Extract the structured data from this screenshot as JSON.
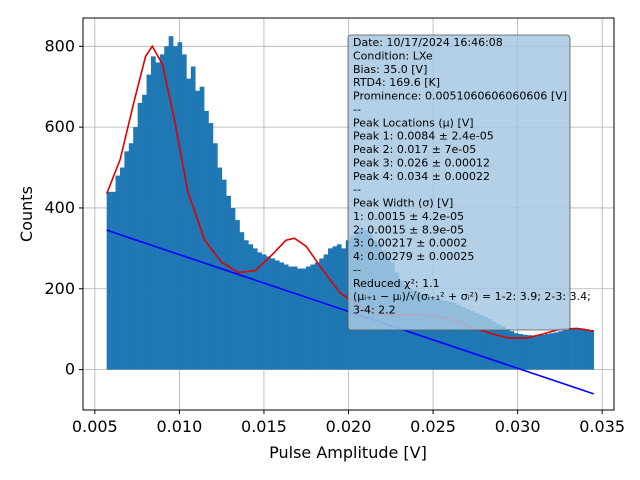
{
  "chart_data": {
    "type": "bar",
    "xlabel": "Pulse Amplitude [V]",
    "ylabel": "Counts",
    "xlim": [
      0.0043,
      0.0357
    ],
    "ylim": [
      -100,
      870
    ],
    "xticks": [
      0.005,
      0.01,
      0.015,
      0.02,
      0.025,
      0.03,
      0.035
    ],
    "xtick_labels": [
      "0.005",
      "0.010",
      "0.015",
      "0.020",
      "0.025",
      "0.030",
      "0.035"
    ],
    "yticks": [
      0,
      200,
      400,
      600,
      800
    ],
    "ytick_labels": [
      "0",
      "200",
      "400",
      "600",
      "800"
    ],
    "grid": true,
    "colors": {
      "histogram": "#1f77b4",
      "fit": "#e00000",
      "baseline": "#0000ff",
      "info_box": "#a6c8e3"
    },
    "histogram": {
      "x_start": 0.0057,
      "x_end": 0.0345,
      "counts": [
        440,
        440,
        480,
        500,
        540,
        560,
        600,
        660,
        680,
        730,
        775,
        760,
        780,
        800,
        825,
        800,
        810,
        780,
        720,
        750,
        690,
        700,
        640,
        610,
        560,
        500,
        470,
        430,
        400,
        370,
        340,
        320,
        310,
        300,
        290,
        285,
        280,
        275,
        270,
        265,
        260,
        255,
        255,
        250,
        250,
        255,
        260,
        265,
        275,
        285,
        300,
        305,
        310,
        300,
        320,
        330,
        340,
        350,
        345,
        335,
        320,
        310,
        295,
        280,
        265,
        240,
        220,
        210,
        200,
        195,
        190,
        185,
        180,
        178,
        175,
        173,
        170,
        168,
        165,
        160,
        155,
        150,
        145,
        140,
        135,
        130,
        125,
        118,
        112,
        108,
        100,
        95,
        90,
        88,
        86,
        85,
        84,
        85,
        86,
        88,
        90,
        92,
        95,
        98,
        100,
        102,
        103,
        102,
        100,
        98
      ]
    },
    "fit_curve": {
      "x": [
        0.0057,
        0.0065,
        0.0073,
        0.008,
        0.0084,
        0.009,
        0.0097,
        0.0105,
        0.0115,
        0.0125,
        0.0135,
        0.0145,
        0.0155,
        0.0163,
        0.0168,
        0.0175,
        0.0185,
        0.0195,
        0.0205,
        0.0215,
        0.0225,
        0.0235,
        0.0245,
        0.0255,
        0.0265,
        0.0275,
        0.0285,
        0.0295,
        0.0305,
        0.0315,
        0.0325,
        0.0335,
        0.0345
      ],
      "y": [
        435,
        520,
        660,
        775,
        800,
        755,
        620,
        440,
        320,
        265,
        240,
        245,
        285,
        320,
        325,
        305,
        245,
        190,
        160,
        140,
        135,
        135,
        135,
        130,
        118,
        102,
        88,
        78,
        78,
        88,
        100,
        102,
        95
      ]
    },
    "baseline_line": {
      "x": [
        0.0057,
        0.0345
      ],
      "y": [
        345,
        -60
      ]
    },
    "annotation": {
      "lines": [
        "Date: 10/17/2024 16:46:08",
        "Condition: LXe",
        "Bias: 35.0 [V]",
        "RTD4: 169.6 [K]",
        "Prominence: 0.0051060606060606 [V]",
        "--",
        "Peak Locations (μ) [V]",
        "Peak 1: 0.0084 ± 2.4e-05",
        "Peak 2: 0.017 ± 7e-05",
        "Peak 3: 0.026 ± 0.00012",
        "Peak 4: 0.034 ± 0.00022",
        "--",
        "Peak Width (σ) [V]",
        "1: 0.0015 ± 4.2e-05",
        "2: 0.0015 ± 8.9e-05",
        "3: 0.00217 ± 0.0002",
        "4: 0.00279 ± 0.00025",
        "--",
        "Reduced χ²: 1.1",
        "(μᵢ₊₁ − μᵢ)/√(σᵢ₊₁² + σᵢ²) = 1-2: 3.9; 2-3: 3.4;",
        "3-4: 2.2"
      ]
    }
  }
}
